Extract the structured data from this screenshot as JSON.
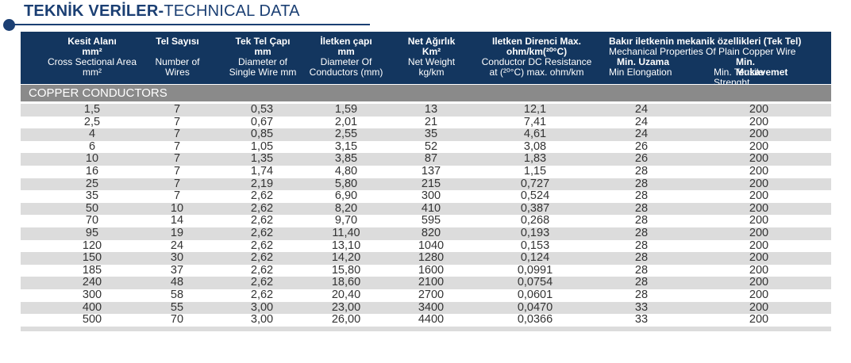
{
  "title": {
    "bold": "TEKNİK VERİLER-",
    "normal": "TECHNICAL DATA"
  },
  "headers": {
    "col1": {
      "tr": "Kesit Alanı",
      "tr_unit": "mm²",
      "en": "Cross Sectional Area",
      "en_unit": "mm²"
    },
    "col2": {
      "tr": "Tel Sayısı",
      "en1": "Number of",
      "en2": "Wires"
    },
    "col3": {
      "tr": "Tek Tel Çapı",
      "tr_unit": "mm",
      "en1": "Diameter of",
      "en2": "Single Wire mm"
    },
    "col4": {
      "tr": "İletken çapı",
      "tr_unit": "mm",
      "en1": "Diameter Of",
      "en2": "Conductors (mm)"
    },
    "col5": {
      "tr": "Net Ağırlık",
      "tr_unit": "Km²",
      "en1": "Net Weight",
      "en2": "kg/km"
    },
    "col6": {
      "tr1": "Iletken Direnci Max.",
      "tr2": "ohm/km(²⁰°C)",
      "en1": "Conductor DC Resistance",
      "en2": "at (²⁰°C) max. ohm/km"
    },
    "mech": {
      "tr": "Bakır iletkenin mekanik özellikleri (Tek Tel)",
      "en": "Mechanical Properties Of Plain Copper Wire",
      "sub1_tr": "Min. Uzama",
      "sub1_en": "Min Elongation",
      "sub2_tr": "Min. Mukavemet",
      "sub2_en": "Min. Tensile Strenght"
    }
  },
  "section_label": "COPPER CONDUCTORS",
  "rows": [
    [
      "1,5",
      "7",
      "0,53",
      "1,59",
      "13",
      "12,1",
      "24",
      "200"
    ],
    [
      "2,5",
      "7",
      "0,67",
      "2,01",
      "21",
      "7,41",
      "24",
      "200"
    ],
    [
      "4",
      "7",
      "0,85",
      "2,55",
      "35",
      "4,61",
      "24",
      "200"
    ],
    [
      "6",
      "7",
      "1,05",
      "3,15",
      "52",
      "3,08",
      "26",
      "200"
    ],
    [
      "10",
      "7",
      "1,35",
      "3,85",
      "87",
      "1,83",
      "26",
      "200"
    ],
    [
      "16",
      "7",
      "1,74",
      "4,80",
      "137",
      "1,15",
      "28",
      "200"
    ],
    [
      "25",
      "7",
      "2,19",
      "5,80",
      "215",
      "0,727",
      "28",
      "200"
    ],
    [
      "35",
      "7",
      "2,62",
      "6,90",
      "300",
      "0,524",
      "28",
      "200"
    ],
    [
      "50",
      "10",
      "2,62",
      "8,20",
      "410",
      "0,387",
      "28",
      "200"
    ],
    [
      "70",
      "14",
      "2,62",
      "9,70",
      "595",
      "0,268",
      "28",
      "200"
    ],
    [
      "95",
      "19",
      "2,62",
      "11,40",
      "820",
      "0,193",
      "28",
      "200"
    ],
    [
      "120",
      "24",
      "2,62",
      "13,10",
      "1040",
      "0,153",
      "28",
      "200"
    ],
    [
      "150",
      "30",
      "2,62",
      "14,20",
      "1280",
      "0,124",
      "28",
      "200"
    ],
    [
      "185",
      "37",
      "2,62",
      "15,80",
      "1600",
      "0,0991",
      "28",
      "200"
    ],
    [
      "240",
      "48",
      "2,62",
      "18,60",
      "2100",
      "0,0754",
      "28",
      "200"
    ],
    [
      "300",
      "58",
      "2,62",
      "20,40",
      "2700",
      "0,0601",
      "28",
      "200"
    ],
    [
      "400",
      "55",
      "3,00",
      "23,00",
      "3400",
      "0,0470",
      "33",
      "200"
    ],
    [
      "500",
      "70",
      "3,00",
      "26,00",
      "4400",
      "0,0366",
      "33",
      "200"
    ]
  ]
}
